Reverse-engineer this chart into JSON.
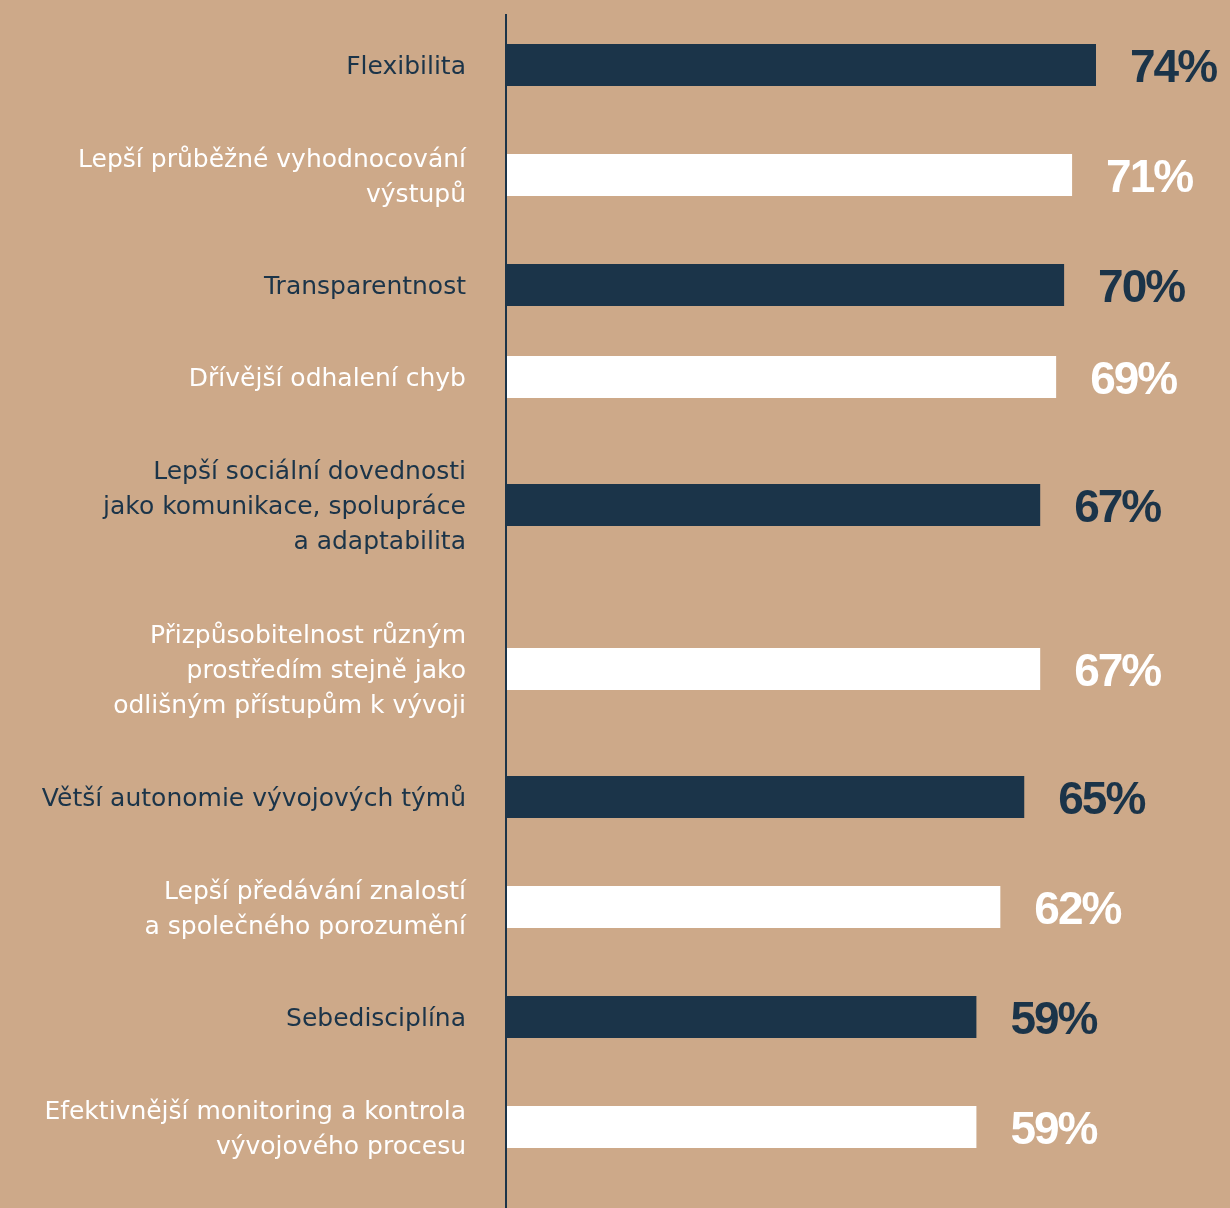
{
  "chart_data": {
    "type": "bar",
    "orientation": "horizontal",
    "categories": [
      "Flexibilita",
      "Lepší průběžné vyhodnocování\nvýstupů",
      "Transparentnost",
      "Dřívější odhalení chyb",
      "Lepší sociální dovednosti\njako komunikace, spolupráce\na adaptabilita",
      "Přizpůsobitelnost různým\nprostředím stejně jako\nodlišným přístupům k vývoji",
      "Větší autonomie vývojových týmů",
      "Lepší předávání znalostí\na společného porozumění",
      "Sebedisciplína",
      "Efektivnější monitoring a kontrola\nvývojového procesu"
    ],
    "values": [
      74,
      71,
      70,
      69,
      67,
      67,
      65,
      62,
      59,
      59
    ],
    "colors": [
      "#1b3449",
      "#ffffff",
      "#1b3449",
      "#ffffff",
      "#1b3449",
      "#ffffff",
      "#1b3449",
      "#ffffff",
      "#1b3449",
      "#ffffff"
    ],
    "value_labels": [
      "74%",
      "71%",
      "70%",
      "69%",
      "67%",
      "67%",
      "65%",
      "62%",
      "59%",
      "59%"
    ]
  }
}
